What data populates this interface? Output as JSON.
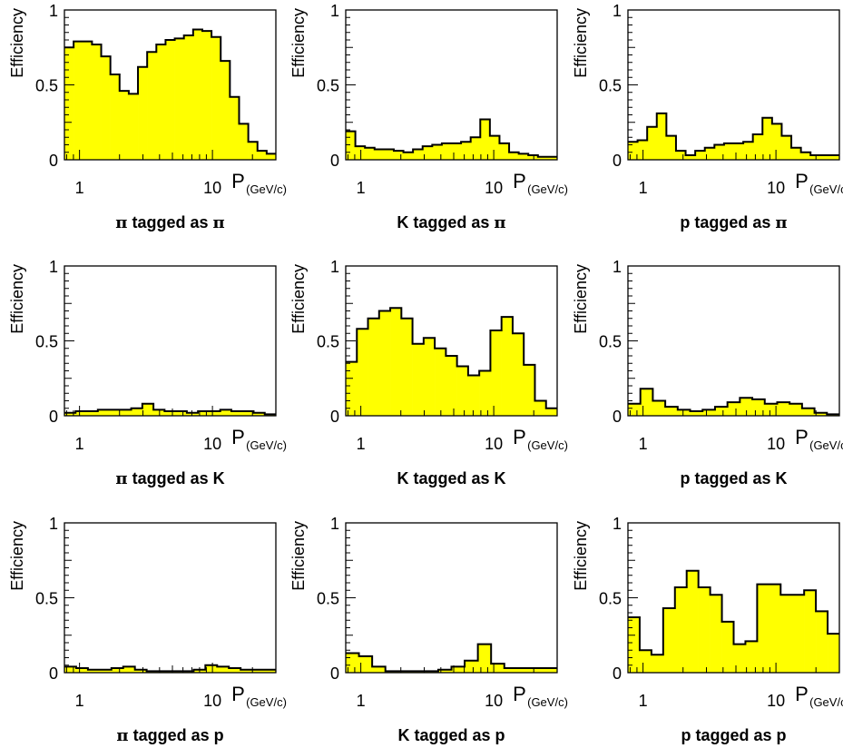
{
  "colors": {
    "fill": "#ffff00",
    "line": "#000000",
    "background": "#ffffff"
  },
  "chart_data": [
    {
      "type": "histogram",
      "caption_main": "π tagged as π",
      "caption_lead": "π",
      "caption_mid": " tagged as ",
      "caption_tail": "π",
      "ylabel": "Efficiency",
      "xlabel": "P",
      "xunit": "(GeV/c)",
      "xscale": "log",
      "xlim": [
        0.77,
        30
      ],
      "ylim": [
        0,
        1
      ],
      "x_tick_labels": [
        "1",
        "10"
      ],
      "y_tick_labels": [
        "0",
        "0.5",
        "1"
      ],
      "values": [
        0.75,
        0.79,
        0.79,
        0.77,
        0.69,
        0.57,
        0.46,
        0.44,
        0.62,
        0.72,
        0.77,
        0.8,
        0.81,
        0.83,
        0.87,
        0.86,
        0.82,
        0.66,
        0.42,
        0.24,
        0.12,
        0.06,
        0.04
      ]
    },
    {
      "type": "histogram",
      "caption_main": "K tagged as π",
      "caption_lead": "",
      "caption_mid": "K tagged as ",
      "caption_tail": "π",
      "ylabel": "Efficiency",
      "xlabel": "P",
      "xunit": "(GeV/c)",
      "xscale": "log",
      "xlim": [
        0.77,
        30
      ],
      "ylim": [
        0,
        1
      ],
      "x_tick_labels": [
        "1",
        "10"
      ],
      "y_tick_labels": [
        "0",
        "0.5",
        "1"
      ],
      "values": [
        0.19,
        0.09,
        0.08,
        0.07,
        0.07,
        0.06,
        0.05,
        0.07,
        0.09,
        0.1,
        0.11,
        0.11,
        0.12,
        0.15,
        0.27,
        0.16,
        0.11,
        0.05,
        0.04,
        0.03,
        0.02,
        0.02
      ]
    },
    {
      "type": "histogram",
      "caption_main": "p tagged as π",
      "caption_lead": "",
      "caption_mid": "p tagged as ",
      "caption_tail": "π",
      "ylabel": "Efficiency",
      "xlabel": "P",
      "xunit": "(GeV/c)",
      "xscale": "log",
      "xlim": [
        0.77,
        30
      ],
      "ylim": [
        0,
        1
      ],
      "x_tick_labels": [
        "1",
        "10"
      ],
      "y_tick_labels": [
        "0",
        "0.5",
        "1"
      ],
      "values": [
        0.12,
        0.13,
        0.22,
        0.31,
        0.16,
        0.06,
        0.03,
        0.06,
        0.08,
        0.1,
        0.11,
        0.11,
        0.12,
        0.17,
        0.28,
        0.24,
        0.16,
        0.08,
        0.05,
        0.03,
        0.03,
        0.03
      ]
    },
    {
      "type": "histogram",
      "caption_main": "π tagged as K",
      "caption_lead": "π",
      "caption_mid": " tagged as K",
      "caption_tail": "",
      "ylabel": "Efficiency",
      "xlabel": "P",
      "xunit": "(GeV/c)",
      "xscale": "log",
      "xlim": [
        0.77,
        30
      ],
      "ylim": [
        0,
        1
      ],
      "x_tick_labels": [
        "1",
        "10"
      ],
      "y_tick_labels": [
        "0",
        "0.5",
        "1"
      ],
      "values": [
        0.02,
        0.03,
        0.03,
        0.04,
        0.04,
        0.04,
        0.05,
        0.08,
        0.04,
        0.03,
        0.03,
        0.02,
        0.03,
        0.03,
        0.04,
        0.03,
        0.03,
        0.02,
        0.01
      ]
    },
    {
      "type": "histogram",
      "caption_main": "K tagged as K",
      "caption_lead": "",
      "caption_mid": "K tagged as K",
      "caption_tail": "",
      "ylabel": "Efficiency",
      "xlabel": "P",
      "xunit": "(GeV/c)",
      "xscale": "log",
      "xlim": [
        0.77,
        30
      ],
      "ylim": [
        0,
        1
      ],
      "x_tick_labels": [
        "1",
        "10"
      ],
      "y_tick_labels": [
        "0",
        "0.5",
        "1"
      ],
      "values": [
        0.36,
        0.58,
        0.65,
        0.7,
        0.72,
        0.65,
        0.48,
        0.52,
        0.45,
        0.4,
        0.33,
        0.27,
        0.3,
        0.57,
        0.66,
        0.55,
        0.34,
        0.1,
        0.05
      ]
    },
    {
      "type": "histogram",
      "caption_main": "p tagged as K",
      "caption_lead": "",
      "caption_mid": "p tagged as K",
      "caption_tail": "",
      "ylabel": "Efficiency",
      "xlabel": "P",
      "xunit": "(GeV/c)",
      "xscale": "log",
      "xlim": [
        0.77,
        30
      ],
      "ylim": [
        0,
        1
      ],
      "x_tick_labels": [
        "1",
        "10"
      ],
      "y_tick_labels": [
        "0",
        "0.5",
        "1"
      ],
      "values": [
        0.08,
        0.18,
        0.1,
        0.06,
        0.04,
        0.03,
        0.04,
        0.06,
        0.09,
        0.12,
        0.11,
        0.08,
        0.09,
        0.08,
        0.05,
        0.02,
        0.01
      ]
    },
    {
      "type": "histogram",
      "caption_main": "π tagged as p",
      "caption_lead": "π",
      "caption_mid": " tagged as p",
      "caption_tail": "",
      "ylabel": "Efficiency",
      "xlabel": "P",
      "xunit": "(GeV/c)",
      "xscale": "log",
      "xlim": [
        0.77,
        30
      ],
      "ylim": [
        0,
        1
      ],
      "x_tick_labels": [
        "1",
        "10"
      ],
      "y_tick_labels": [
        "0",
        "0.5",
        "1"
      ],
      "values": [
        0.04,
        0.03,
        0.02,
        0.02,
        0.03,
        0.04,
        0.02,
        0.01,
        0.01,
        0.01,
        0.01,
        0.02,
        0.05,
        0.04,
        0.03,
        0.02,
        0.02,
        0.02
      ]
    },
    {
      "type": "histogram",
      "caption_main": "K tagged as p",
      "caption_lead": "",
      "caption_mid": "K tagged as p",
      "caption_tail": "",
      "ylabel": "Efficiency",
      "xlabel": "P",
      "xunit": "(GeV/c)",
      "xscale": "log",
      "xlim": [
        0.77,
        30
      ],
      "ylim": [
        0,
        1
      ],
      "x_tick_labels": [
        "1",
        "10"
      ],
      "y_tick_labels": [
        "0",
        "0.5",
        "1"
      ],
      "values": [
        0.13,
        0.11,
        0.04,
        0.01,
        0.01,
        0.01,
        0.01,
        0.02,
        0.04,
        0.08,
        0.19,
        0.06,
        0.03,
        0.03,
        0.03,
        0.03
      ]
    },
    {
      "type": "histogram",
      "caption_main": "p tagged as p",
      "caption_lead": "",
      "caption_mid": "p tagged as p",
      "caption_tail": "",
      "ylabel": "Efficiency",
      "xlabel": "P",
      "xunit": "(GeV/c)",
      "xscale": "log",
      "xlim": [
        0.77,
        30
      ],
      "ylim": [
        0,
        1
      ],
      "x_tick_labels": [
        "1",
        "10"
      ],
      "y_tick_labels": [
        "0",
        "0.5",
        "1"
      ],
      "values": [
        0.37,
        0.15,
        0.12,
        0.43,
        0.57,
        0.68,
        0.57,
        0.52,
        0.34,
        0.19,
        0.21,
        0.59,
        0.59,
        0.52,
        0.52,
        0.55,
        0.41,
        0.26
      ]
    }
  ]
}
